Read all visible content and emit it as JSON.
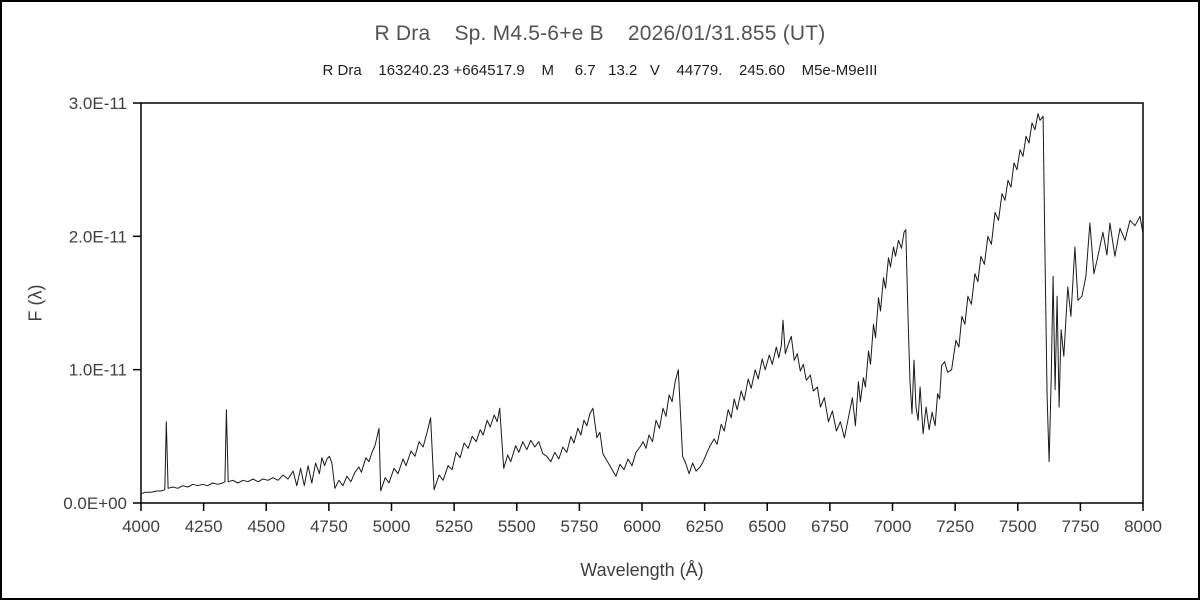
{
  "chart_data": {
    "type": "line",
    "title": "R Dra    Sp. M4.5-6+e B    2026/01/31.855 (UT)",
    "subtitle": "R Dra    163240.23 +664517.9    M     6.7   13.2   V    44779.    245.60    M5e-M9eIII",
    "xlabel": "Wavelength (Å)",
    "ylabel": "F (λ)",
    "xlim": [
      4000,
      8000
    ],
    "ylim_x1e11": [
      0,
      3
    ],
    "grid": false,
    "legend": "none",
    "line_color": "#1a1a1a",
    "axis_color": "#000000",
    "x_ticks": [
      4000,
      4250,
      4500,
      4750,
      5000,
      5250,
      5500,
      5750,
      6000,
      6250,
      6500,
      6750,
      7000,
      7250,
      7500,
      7750,
      8000
    ],
    "y_ticks": [
      {
        "value_x1e11": 0,
        "label": "0.0E+00"
      },
      {
        "value_x1e11": 1,
        "label": "1.0E-11"
      },
      {
        "value_x1e11": 2,
        "label": "2.0E-11"
      },
      {
        "value_x1e11": 3,
        "label": "3.0E-11"
      }
    ],
    "series_name": "flux",
    "flux_unit_note": "points are [wavelength_angstrom, flux_x1e11]",
    "points": [
      [
        4000,
        0.07
      ],
      [
        4016,
        0.08
      ],
      [
        4040,
        0.08
      ],
      [
        4063,
        0.09
      ],
      [
        4080,
        0.09
      ],
      [
        4095,
        0.1
      ],
      [
        4101,
        0.61
      ],
      [
        4108,
        0.11
      ],
      [
        4127,
        0.12
      ],
      [
        4147,
        0.11
      ],
      [
        4167,
        0.13
      ],
      [
        4187,
        0.12
      ],
      [
        4207,
        0.14
      ],
      [
        4227,
        0.13
      ],
      [
        4246,
        0.14
      ],
      [
        4266,
        0.13
      ],
      [
        4286,
        0.15
      ],
      [
        4306,
        0.14
      ],
      [
        4326,
        0.15
      ],
      [
        4335,
        0.16
      ],
      [
        4341,
        0.7
      ],
      [
        4348,
        0.16
      ],
      [
        4367,
        0.17
      ],
      [
        4387,
        0.15
      ],
      [
        4407,
        0.17
      ],
      [
        4427,
        0.16
      ],
      [
        4447,
        0.18
      ],
      [
        4467,
        0.16
      ],
      [
        4487,
        0.18
      ],
      [
        4507,
        0.17
      ],
      [
        4527,
        0.19
      ],
      [
        4547,
        0.17
      ],
      [
        4567,
        0.21
      ],
      [
        4587,
        0.18
      ],
      [
        4607,
        0.24
      ],
      [
        4622,
        0.13
      ],
      [
        4637,
        0.26
      ],
      [
        4652,
        0.13
      ],
      [
        4667,
        0.28
      ],
      [
        4682,
        0.15
      ],
      [
        4697,
        0.3
      ],
      [
        4712,
        0.22
      ],
      [
        4722,
        0.34
      ],
      [
        4733,
        0.28
      ],
      [
        4742,
        0.33
      ],
      [
        4752,
        0.35
      ],
      [
        4762,
        0.3
      ],
      [
        4774,
        0.11
      ],
      [
        4790,
        0.17
      ],
      [
        4806,
        0.13
      ],
      [
        4822,
        0.2
      ],
      [
        4838,
        0.16
      ],
      [
        4854,
        0.23
      ],
      [
        4870,
        0.27
      ],
      [
        4880,
        0.23
      ],
      [
        4898,
        0.34
      ],
      [
        4910,
        0.31
      ],
      [
        4922,
        0.38
      ],
      [
        4934,
        0.43
      ],
      [
        4950,
        0.56
      ],
      [
        4957,
        0.09
      ],
      [
        4975,
        0.19
      ],
      [
        4990,
        0.15
      ],
      [
        5010,
        0.26
      ],
      [
        5026,
        0.22
      ],
      [
        5046,
        0.33
      ],
      [
        5058,
        0.28
      ],
      [
        5078,
        0.39
      ],
      [
        5094,
        0.35
      ],
      [
        5110,
        0.46
      ],
      [
        5126,
        0.42
      ],
      [
        5142,
        0.53
      ],
      [
        5156,
        0.64
      ],
      [
        5170,
        0.1
      ],
      [
        5190,
        0.21
      ],
      [
        5206,
        0.17
      ],
      [
        5226,
        0.28
      ],
      [
        5242,
        0.25
      ],
      [
        5258,
        0.38
      ],
      [
        5274,
        0.34
      ],
      [
        5290,
        0.45
      ],
      [
        5306,
        0.41
      ],
      [
        5322,
        0.5
      ],
      [
        5338,
        0.46
      ],
      [
        5354,
        0.55
      ],
      [
        5366,
        0.51
      ],
      [
        5382,
        0.62
      ],
      [
        5394,
        0.57
      ],
      [
        5410,
        0.66
      ],
      [
        5422,
        0.61
      ],
      [
        5432,
        0.71
      ],
      [
        5448,
        0.26
      ],
      [
        5464,
        0.36
      ],
      [
        5476,
        0.31
      ],
      [
        5496,
        0.43
      ],
      [
        5508,
        0.38
      ],
      [
        5524,
        0.46
      ],
      [
        5540,
        0.4
      ],
      [
        5556,
        0.47
      ],
      [
        5572,
        0.42
      ],
      [
        5588,
        0.46
      ],
      [
        5604,
        0.37
      ],
      [
        5620,
        0.35
      ],
      [
        5636,
        0.31
      ],
      [
        5652,
        0.38
      ],
      [
        5668,
        0.33
      ],
      [
        5684,
        0.42
      ],
      [
        5700,
        0.38
      ],
      [
        5716,
        0.5
      ],
      [
        5728,
        0.45
      ],
      [
        5744,
        0.56
      ],
      [
        5756,
        0.51
      ],
      [
        5768,
        0.62
      ],
      [
        5780,
        0.58
      ],
      [
        5792,
        0.67
      ],
      [
        5804,
        0.71
      ],
      [
        5820,
        0.49
      ],
      [
        5832,
        0.53
      ],
      [
        5844,
        0.37
      ],
      [
        5856,
        0.33
      ],
      [
        5872,
        0.28
      ],
      [
        5884,
        0.24
      ],
      [
        5896,
        0.2
      ],
      [
        5912,
        0.29
      ],
      [
        5928,
        0.25
      ],
      [
        5944,
        0.33
      ],
      [
        5960,
        0.28
      ],
      [
        5976,
        0.38
      ],
      [
        5992,
        0.42
      ],
      [
        6004,
        0.46
      ],
      [
        6016,
        0.41
      ],
      [
        6028,
        0.51
      ],
      [
        6042,
        0.46
      ],
      [
        6056,
        0.62
      ],
      [
        6070,
        0.56
      ],
      [
        6084,
        0.71
      ],
      [
        6096,
        0.65
      ],
      [
        6108,
        0.81
      ],
      [
        6120,
        0.76
      ],
      [
        6132,
        0.91
      ],
      [
        6145,
        1.0
      ],
      [
        6162,
        0.35
      ],
      [
        6174,
        0.3
      ],
      [
        6188,
        0.22
      ],
      [
        6202,
        0.3
      ],
      [
        6216,
        0.24
      ],
      [
        6232,
        0.27
      ],
      [
        6244,
        0.31
      ],
      [
        6260,
        0.38
      ],
      [
        6272,
        0.43
      ],
      [
        6288,
        0.48
      ],
      [
        6300,
        0.44
      ],
      [
        6316,
        0.59
      ],
      [
        6328,
        0.54
      ],
      [
        6344,
        0.7
      ],
      [
        6356,
        0.64
      ],
      [
        6368,
        0.78
      ],
      [
        6380,
        0.7
      ],
      [
        6396,
        0.84
      ],
      [
        6408,
        0.77
      ],
      [
        6424,
        0.93
      ],
      [
        6436,
        0.86
      ],
      [
        6452,
        1.0
      ],
      [
        6464,
        0.93
      ],
      [
        6480,
        1.08
      ],
      [
        6492,
        1.0
      ],
      [
        6508,
        1.11
      ],
      [
        6520,
        1.04
      ],
      [
        6536,
        1.17
      ],
      [
        6546,
        1.09
      ],
      [
        6556,
        1.18
      ],
      [
        6563,
        1.37
      ],
      [
        6572,
        1.12
      ],
      [
        6584,
        1.19
      ],
      [
        6596,
        1.25
      ],
      [
        6608,
        1.07
      ],
      [
        6620,
        1.12
      ],
      [
        6632,
        0.99
      ],
      [
        6644,
        1.04
      ],
      [
        6656,
        0.92
      ],
      [
        6672,
        0.96
      ],
      [
        6684,
        0.84
      ],
      [
        6700,
        0.87
      ],
      [
        6712,
        0.72
      ],
      [
        6728,
        0.79
      ],
      [
        6744,
        0.61
      ],
      [
        6760,
        0.69
      ],
      [
        6776,
        0.54
      ],
      [
        6792,
        0.61
      ],
      [
        6808,
        0.49
      ],
      [
        6824,
        0.64
      ],
      [
        6840,
        0.79
      ],
      [
        6852,
        0.58
      ],
      [
        6864,
        0.91
      ],
      [
        6872,
        0.76
      ],
      [
        6884,
        0.94
      ],
      [
        6892,
        0.87
      ],
      [
        6904,
        1.14
      ],
      [
        6912,
        1.04
      ],
      [
        6924,
        1.34
      ],
      [
        6932,
        1.24
      ],
      [
        6944,
        1.54
      ],
      [
        6952,
        1.44
      ],
      [
        6964,
        1.69
      ],
      [
        6972,
        1.61
      ],
      [
        6984,
        1.84
      ],
      [
        6992,
        1.77
      ],
      [
        7004,
        1.92
      ],
      [
        7012,
        1.85
      ],
      [
        7024,
        1.97
      ],
      [
        7036,
        1.91
      ],
      [
        7046,
        2.03
      ],
      [
        7053,
        2.05
      ],
      [
        7062,
        1.4
      ],
      [
        7070,
        0.91
      ],
      [
        7078,
        0.67
      ],
      [
        7086,
        1.07
      ],
      [
        7094,
        0.72
      ],
      [
        7102,
        0.62
      ],
      [
        7110,
        0.87
      ],
      [
        7122,
        0.52
      ],
      [
        7134,
        0.72
      ],
      [
        7146,
        0.55
      ],
      [
        7158,
        0.68
      ],
      [
        7170,
        0.58
      ],
      [
        7180,
        0.82
      ],
      [
        7188,
        0.78
      ],
      [
        7196,
        1.03
      ],
      [
        7208,
        1.06
      ],
      [
        7220,
        0.98
      ],
      [
        7236,
        1.0
      ],
      [
        7253,
        1.22
      ],
      [
        7265,
        1.17
      ],
      [
        7277,
        1.4
      ],
      [
        7289,
        1.34
      ],
      [
        7301,
        1.55
      ],
      [
        7315,
        1.49
      ],
      [
        7329,
        1.72
      ],
      [
        7341,
        1.66
      ],
      [
        7353,
        1.85
      ],
      [
        7367,
        1.79
      ],
      [
        7381,
        2.0
      ],
      [
        7395,
        1.94
      ],
      [
        7409,
        2.18
      ],
      [
        7423,
        2.12
      ],
      [
        7437,
        2.32
      ],
      [
        7449,
        2.27
      ],
      [
        7461,
        2.42
      ],
      [
        7473,
        2.37
      ],
      [
        7485,
        2.55
      ],
      [
        7497,
        2.5
      ],
      [
        7509,
        2.65
      ],
      [
        7521,
        2.6
      ],
      [
        7533,
        2.75
      ],
      [
        7545,
        2.7
      ],
      [
        7557,
        2.85
      ],
      [
        7569,
        2.8
      ],
      [
        7581,
        2.92
      ],
      [
        7589,
        2.87
      ],
      [
        7601,
        2.9
      ],
      [
        7609,
        1.8
      ],
      [
        7617,
        0.8
      ],
      [
        7625,
        0.31
      ],
      [
        7633,
        0.9
      ],
      [
        7641,
        1.7
      ],
      [
        7649,
        0.85
      ],
      [
        7657,
        1.55
      ],
      [
        7665,
        0.72
      ],
      [
        7673,
        1.3
      ],
      [
        7684,
        1.1
      ],
      [
        7700,
        1.62
      ],
      [
        7712,
        1.4
      ],
      [
        7728,
        1.92
      ],
      [
        7740,
        1.52
      ],
      [
        7756,
        1.55
      ],
      [
        7772,
        1.7
      ],
      [
        7788,
        2.1
      ],
      [
        7804,
        1.72
      ],
      [
        7820,
        1.85
      ],
      [
        7840,
        2.03
      ],
      [
        7856,
        1.86
      ],
      [
        7868,
        2.1
      ],
      [
        7888,
        1.85
      ],
      [
        7908,
        2.06
      ],
      [
        7928,
        1.97
      ],
      [
        7948,
        2.12
      ],
      [
        7968,
        2.08
      ],
      [
        7988,
        2.15
      ],
      [
        8000,
        2.02
      ]
    ]
  }
}
